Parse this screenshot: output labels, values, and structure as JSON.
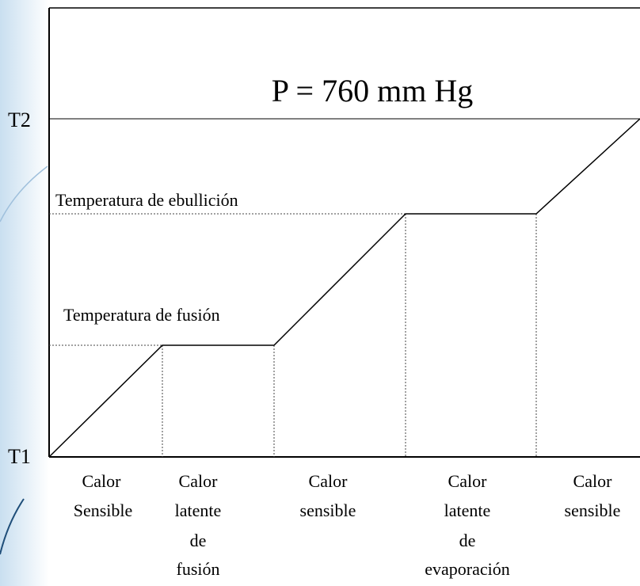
{
  "title": "P = 760 mm Hg",
  "axis": {
    "top": "T2",
    "bottom": "T1"
  },
  "annotations": {
    "boiling": "Temperatura de ebullición",
    "melting": "Temperatura de fusión"
  },
  "stages": [
    {
      "lines": [
        "Calor",
        "Sensible"
      ]
    },
    {
      "lines": [
        "Calor",
        "latente",
        "de",
        "fusión"
      ]
    },
    {
      "lines": [
        "Calor",
        "sensible"
      ]
    },
    {
      "lines": [
        "Calor",
        "latente",
        "de",
        "evaporación"
      ]
    },
    {
      "lines": [
        "Calor",
        "sensible"
      ]
    }
  ]
}
